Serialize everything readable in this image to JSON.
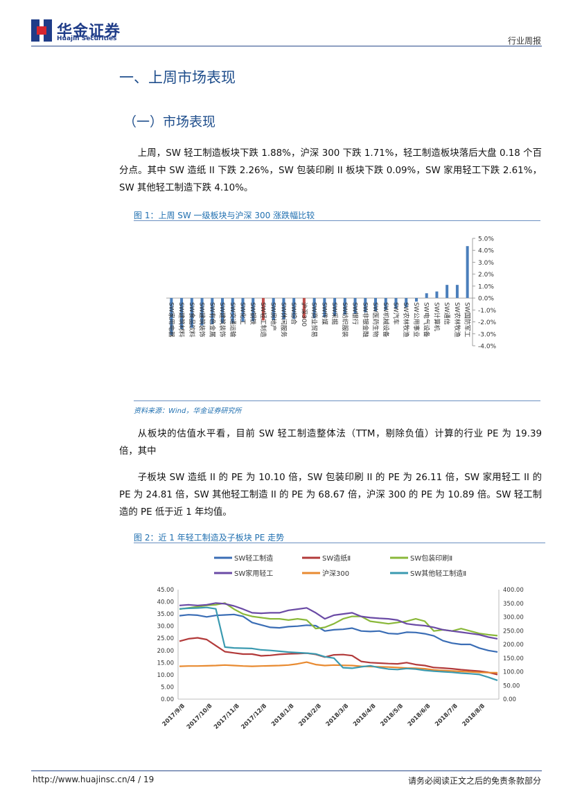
{
  "header": {
    "logo_cn": "华金证券",
    "logo_en": "Huajin Securities",
    "report_type": "行业周报"
  },
  "section": {
    "h1": "一、上周市场表现",
    "h2": "（一）市场表现"
  },
  "paragraphs": {
    "p1": "上周，SW 轻工制造板块下跌 1.88%，沪深 300 下跌 1.71%，轻工制造板块落后大盘 0.18 个百分点。其中 SW 造纸 II 下跌 2.26%，SW 包装印刷 II 板块下跌 0.09%，SW 家用轻工下跌 2.61%，SW 其他轻工制造下跌 4.10%。",
    "p2": "从板块的估值水平看，目前 SW 轻工制造整体法（TTM，剔除负值）计算的行业 PE 为 19.39 倍，其中",
    "p3": "子板块 SW 造纸 II 的 PE 为 10.10 倍，SW 包装印刷 II 的 PE 为 26.11 倍，SW 家用轻工 II 的 PE 为 24.81 倍，SW 其他轻工制造 II 的 PE 为 68.67 倍，沪深 300 的 PE 为 10.89 倍。SW 轻工制造的 PE 低于近 1 年均值。"
  },
  "figures": {
    "fig1_title": "图 1：上周 SW 一级板块与沪深 300 涨跌幅比较",
    "fig1_source": "资料来源：Wind，华金证券研究所",
    "fig2_title": "图 2：近 1 年轻工制造及子板块 PE 走势"
  },
  "colors": {
    "brand": "#1f3c88",
    "bar_default": "#4a7ebb",
    "bar_highlight": "#c0504d"
  },
  "chart_data": [
    {
      "type": "bar",
      "orientation": "vertical",
      "y_axis_side": "right",
      "categories": [
        "SW家用电器",
        "SW建筑材料",
        "SW食品饮料",
        "SW建筑装饰",
        "SW有色金属",
        "SW建筑装饰",
        "SW交通运输",
        "SW化工",
        "SW钢铁",
        "SW轻工制造",
        "SW房地产",
        "SW休闲服务",
        "SW综合",
        "沪深300",
        "SW商业贸易",
        "SW传媒",
        "SW采掘",
        "SW纺织服装",
        "SW银行",
        "SW非银金融",
        "SW医药生物",
        "SW机械设备",
        "SW汽车",
        "SW农林牧渔",
        "SW公用事业",
        "SW电气设备",
        "SW计算机",
        "SW通信",
        "SW农林牧渔",
        "SW国防军工"
      ],
      "values": [
        -3.1,
        -2.6,
        -2.5,
        -2.3,
        -2.2,
        -2.1,
        -2.1,
        -2.0,
        -1.95,
        -1.88,
        -1.85,
        -1.8,
        -1.75,
        -1.71,
        -1.7,
        -1.6,
        -1.5,
        -1.4,
        -1.3,
        -1.2,
        -1.1,
        -1.0,
        -0.9,
        -0.8,
        -0.3,
        0.4,
        0.55,
        1.1,
        1.1,
        4.35
      ],
      "highlight": [
        "SW轻工制造",
        "沪深300"
      ],
      "ylim": [
        -4,
        5
      ],
      "yticks": [
        "5.0%",
        "4.0%",
        "3.0%",
        "2.0%",
        "1.0%",
        "0.0%",
        "-1.0%",
        "-2.0%",
        "-3.0%",
        "-4.0%"
      ],
      "ytick_values": [
        5,
        4,
        3,
        2,
        1,
        0,
        -1,
        -2,
        -3,
        -4
      ]
    },
    {
      "type": "line",
      "legend": [
        "SW轻工制造",
        "SW造纸Ⅱ",
        "SW包装印刷Ⅱ",
        "SW家用轻工",
        "沪深300",
        "SW其他轻工制造Ⅱ"
      ],
      "x_labels": [
        "2017/9/8",
        "2017/10/8",
        "2017/11/8",
        "2017/12/8",
        "2018/1/8",
        "2018/2/8",
        "2018/3/8",
        "2018/4/8",
        "2018/5/8",
        "2018/6/8",
        "2018/7/8",
        "2018/8/8"
      ],
      "ylim_left": [
        0,
        45
      ],
      "yticks_left": [
        "45.00",
        "40.00",
        "35.00",
        "30.00",
        "25.00",
        "20.00",
        "15.00",
        "10.00",
        "5.00",
        "0.00"
      ],
      "ylim_right": [
        0,
        400
      ],
      "yticks_right": [
        "400.00",
        "350.00",
        "300.00",
        "250.00",
        "200.00",
        "150.00",
        "100.00",
        "50.00",
        "0.00"
      ],
      "series": [
        {
          "name": "SW轻工制造",
          "color": "#3a6db5",
          "axis": "left",
          "values": [
            34.3,
            34.7,
            34.5,
            33.8,
            34.4,
            34.6,
            34.8,
            34.0,
            31.5,
            30.5,
            29.5,
            29.3,
            29.8,
            30.0,
            30.4,
            30.2,
            28.0,
            28.5,
            28.7,
            29.2,
            28.0,
            27.8,
            28.0,
            27.0,
            26.8,
            27.5,
            27.4,
            26.9,
            26.0,
            24.0,
            23.0,
            22.5,
            22.5,
            21.0,
            20.0,
            19.4
          ]
        },
        {
          "name": "SW造纸Ⅱ",
          "color": "#b23a3a",
          "axis": "left",
          "values": [
            23.8,
            24.8,
            25.2,
            24.5,
            22.0,
            19.5,
            19.0,
            18.5,
            18.5,
            17.8,
            18.0,
            18.4,
            18.6,
            18.7,
            18.9,
            18.4,
            17.3,
            18.2,
            18.3,
            17.9,
            15.5,
            15.0,
            14.8,
            14.6,
            14.5,
            15.0,
            14.2,
            13.8,
            13.0,
            12.8,
            12.5,
            12.1,
            11.8,
            11.5,
            11.0,
            10.1
          ]
        },
        {
          "name": "SW包装印刷Ⅱ",
          "color": "#8ab83a",
          "axis": "left",
          "values": [
            37.0,
            37.5,
            38.0,
            38.5,
            38.8,
            39.5,
            37.0,
            35.0,
            34.0,
            33.5,
            33.0,
            33.0,
            32.5,
            33.0,
            32.5,
            29.0,
            29.5,
            31.0,
            33.0,
            34.0,
            34.0,
            32.0,
            31.5,
            31.0,
            31.5,
            32.0,
            33.0,
            32.0,
            28.0,
            28.5,
            28.0,
            29.0,
            28.0,
            27.0,
            26.5,
            26.1
          ]
        },
        {
          "name": "SW家用轻工",
          "color": "#6a4aa5",
          "axis": "left",
          "values": [
            38.5,
            38.8,
            38.5,
            38.8,
            39.5,
            39.2,
            38.3,
            37.0,
            35.5,
            35.3,
            35.5,
            35.5,
            36.5,
            37.0,
            37.5,
            35.5,
            33.0,
            34.5,
            35.0,
            35.5,
            34.0,
            33.5,
            33.2,
            33.0,
            32.5,
            31.0,
            30.5,
            30.2,
            29.5,
            28.5,
            28.0,
            27.5,
            27.0,
            26.5,
            25.5,
            24.8
          ]
        },
        {
          "name": "沪深300",
          "color": "#e88a30",
          "axis": "left",
          "values": [
            13.5,
            13.6,
            13.6,
            13.7,
            13.8,
            14.0,
            13.8,
            13.6,
            13.5,
            13.6,
            13.7,
            13.8,
            14.0,
            14.5,
            15.2,
            14.2,
            13.8,
            14.0,
            13.9,
            13.8,
            13.5,
            13.4,
            13.3,
            13.2,
            13.0,
            12.8,
            12.7,
            12.5,
            12.0,
            11.8,
            11.6,
            11.4,
            11.2,
            11.0,
            10.9,
            10.89
          ]
        },
        {
          "name": "SW其他轻工制造Ⅱ",
          "color": "#3a9ab0",
          "axis": "right",
          "values": [
            330,
            332,
            333,
            335,
            330,
            190,
            187,
            186,
            185,
            180,
            178,
            175,
            172,
            170,
            168,
            165,
            155,
            150,
            115,
            113,
            118,
            122,
            115,
            110,
            108,
            112,
            110,
            105,
            102,
            100,
            98,
            95,
            93,
            90,
            80,
            68.67
          ]
        }
      ]
    }
  ],
  "footer": {
    "url": "http://www.huajinsc.cn/4 / 19",
    "disclaimer": "请务必阅读正文之后的免责条款部分"
  }
}
